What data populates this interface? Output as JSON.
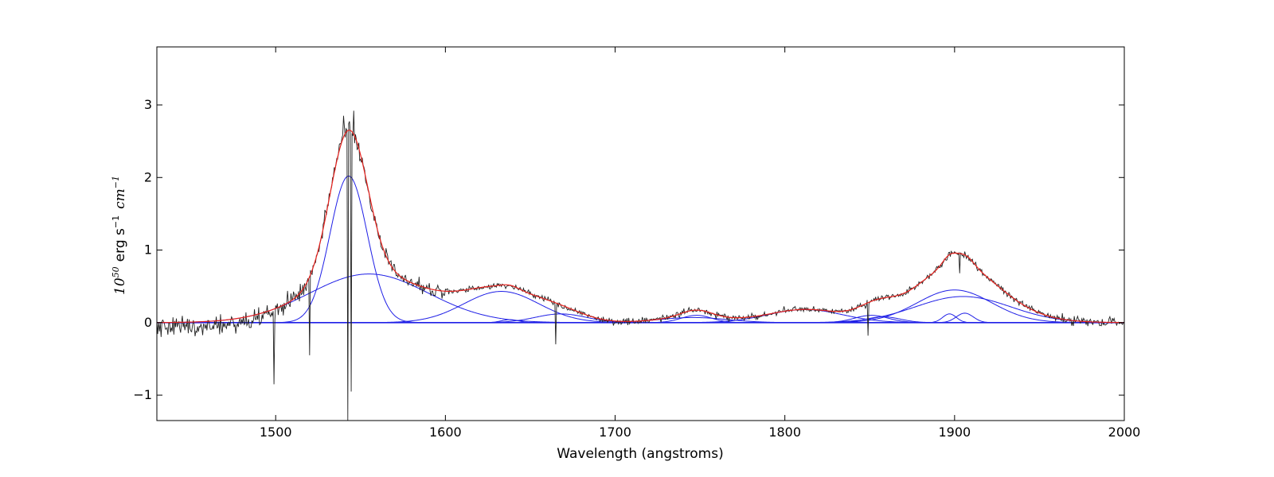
{
  "chart_data": {
    "type": "line",
    "title": "",
    "xlabel": "Wavelength (angstroms)",
    "ylabel": {
      "base": "10",
      "exp": "50",
      "unit_text": "erg s",
      "unit_exp": "−1",
      "unit_math": "cm",
      "unit_math_exp": "−1"
    },
    "xlim": [
      1430,
      2000
    ],
    "ylim": [
      -1.35,
      3.8
    ],
    "x_ticks": [
      1500,
      1600,
      1700,
      1800,
      1900,
      2000
    ],
    "y_ticks": [
      {
        "value": -1,
        "label": "−1"
      },
      {
        "value": 0,
        "label": "0"
      },
      {
        "value": 1,
        "label": "1"
      },
      {
        "value": 2,
        "label": "2"
      },
      {
        "value": 3,
        "label": "3"
      }
    ],
    "grid": false,
    "legend": "none",
    "colors": {
      "observed": "#222222",
      "total_fit": "#e8231f",
      "components": "#1f1fe6",
      "continuum": "#1f1fe6"
    },
    "gaussian_components": [
      {
        "center": 1543,
        "amplitude": 2.02,
        "sigma": 11
      },
      {
        "center": 1555,
        "amplitude": 0.67,
        "sigma": 35
      },
      {
        "center": 1633,
        "amplitude": 0.43,
        "sigma": 22
      },
      {
        "center": 1638,
        "amplitude": 0.04,
        "sigma": 5
      },
      {
        "center": 1668,
        "amplitude": 0.12,
        "sigma": 15
      },
      {
        "center": 1748,
        "amplitude": 0.1,
        "sigma": 9
      },
      {
        "center": 1746,
        "amplitude": 0.07,
        "sigma": 20
      },
      {
        "center": 1812,
        "amplitude": 0.18,
        "sigma": 22
      },
      {
        "center": 1851,
        "amplitude": 0.1,
        "sigma": 10
      },
      {
        "center": 1858,
        "amplitude": 0.08,
        "sigma": 10
      },
      {
        "center": 1900,
        "amplitude": 0.45,
        "sigma": 22
      },
      {
        "center": 1905,
        "amplitude": 0.36,
        "sigma": 28
      },
      {
        "center": 1897,
        "amplitude": 0.12,
        "sigma": 4
      },
      {
        "center": 1906,
        "amplitude": 0.13,
        "sigma": 5
      }
    ],
    "observed_spectrum": {
      "x_start": 1430,
      "x_end": 2000,
      "step": 0.5,
      "noise_blue_wing": 0.17,
      "noise_core": 0.12,
      "noise_red": 0.05,
      "absorption_spikes": [
        {
          "x": 1542.5,
          "y": -1.35
        },
        {
          "x": 1544.5,
          "y": -0.95
        },
        {
          "x": 1540,
          "y": 2.85
        },
        {
          "x": 1546,
          "y": 2.92
        },
        {
          "x": 1499,
          "y": -0.85
        },
        {
          "x": 1520,
          "y": -0.45
        },
        {
          "x": 1665,
          "y": -0.3
        },
        {
          "x": 1849,
          "y": -0.18
        },
        {
          "x": 1903,
          "y": 0.68
        }
      ]
    }
  }
}
